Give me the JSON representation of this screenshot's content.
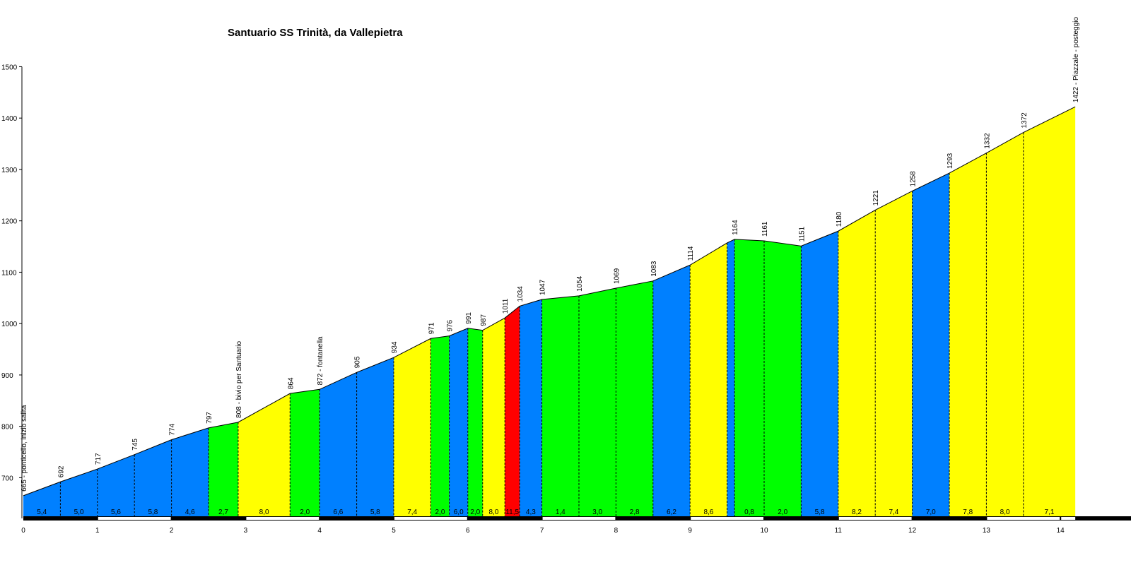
{
  "chart_data": {
    "type": "area",
    "title": "Santuario SS Trinità, da Vallepietra",
    "xlabel": "",
    "ylabel": "",
    "xlim": [
      0,
      15.2
    ],
    "ylim": [
      625,
      1500
    ],
    "y_ticks": [
      "700",
      "800",
      "900",
      "1000",
      "1100",
      "1200",
      "1300",
      "1400",
      "1500"
    ],
    "x_ticks": [
      "0",
      "1",
      "2",
      "3",
      "4",
      "5",
      "6",
      "7",
      "8",
      "9",
      "10",
      "11",
      "12",
      "13",
      "14"
    ],
    "colors": {
      "blue": "#0080ff",
      "green": "#00ff00",
      "yellow": "#ffff00",
      "red": "#ff0000"
    },
    "points": [
      {
        "x": 0,
        "y": 665,
        "label": "665 - ponticello, inizio salita"
      },
      {
        "x": 0.5,
        "y": 692,
        "label": "692"
      },
      {
        "x": 1,
        "y": 717,
        "label": "717"
      },
      {
        "x": 1.5,
        "y": 745,
        "label": "745"
      },
      {
        "x": 2,
        "y": 774,
        "label": "774"
      },
      {
        "x": 2.5,
        "y": 797,
        "label": "797"
      },
      {
        "x": 2.9,
        "y": 808,
        "label": "808 - bivio per Santuario"
      },
      {
        "x": 3.6,
        "y": 864,
        "label": "864"
      },
      {
        "x": 4,
        "y": 872,
        "label": "872 - fontanella"
      },
      {
        "x": 4.5,
        "y": 905,
        "label": "905"
      },
      {
        "x": 5,
        "y": 934,
        "label": "934"
      },
      {
        "x": 5.5,
        "y": 971,
        "label": "971"
      },
      {
        "x": 5.75,
        "y": 976,
        "label": "976"
      },
      {
        "x": 6,
        "y": 991,
        "label": "991"
      },
      {
        "x": 6.2,
        "y": 987,
        "label": "987"
      },
      {
        "x": 6.5,
        "y": 1011,
        "label": "1011"
      },
      {
        "x": 6.7,
        "y": 1034,
        "label": "1034"
      },
      {
        "x": 7,
        "y": 1047,
        "label": "1047"
      },
      {
        "x": 7.5,
        "y": 1054,
        "label": "1054"
      },
      {
        "x": 8,
        "y": 1069,
        "label": "1069"
      },
      {
        "x": 8.5,
        "y": 1083,
        "label": "1083"
      },
      {
        "x": 9,
        "y": 1114,
        "label": "1114"
      },
      {
        "x": 9.5,
        "y": 1157,
        "label": ""
      },
      {
        "x": 9.6,
        "y": 1164,
        "label": "1164"
      },
      {
        "x": 10,
        "y": 1161,
        "label": "1161"
      },
      {
        "x": 10.5,
        "y": 1151,
        "label": "1151"
      },
      {
        "x": 11,
        "y": 1180,
        "label": "1180"
      },
      {
        "x": 11.5,
        "y": 1221,
        "label": "1221"
      },
      {
        "x": 12,
        "y": 1258,
        "label": "1258"
      },
      {
        "x": 12.5,
        "y": 1293,
        "label": "1293"
      },
      {
        "x": 13,
        "y": 1332,
        "label": "1332"
      },
      {
        "x": 13.5,
        "y": 1372,
        "label": "1372"
      },
      {
        "x": 14.2,
        "y": 1422,
        "label": "1422 - Piazzale - posteggio"
      }
    ],
    "segments": [
      {
        "from": 0,
        "to": 0.5,
        "gradient": "5,4",
        "color": "blue"
      },
      {
        "from": 0.5,
        "to": 1,
        "gradient": "5,0",
        "color": "blue"
      },
      {
        "from": 1,
        "to": 1.5,
        "gradient": "5,6",
        "color": "blue"
      },
      {
        "from": 1.5,
        "to": 2,
        "gradient": "5,8",
        "color": "blue"
      },
      {
        "from": 2,
        "to": 2.5,
        "gradient": "4,6",
        "color": "blue"
      },
      {
        "from": 2.5,
        "to": 2.9,
        "gradient": "2,7",
        "color": "green"
      },
      {
        "from": 2.9,
        "to": 3.6,
        "gradient": "8,0",
        "color": "yellow"
      },
      {
        "from": 3.6,
        "to": 4,
        "gradient": "2,0",
        "color": "green"
      },
      {
        "from": 4,
        "to": 4.5,
        "gradient": "6,6",
        "color": "blue"
      },
      {
        "from": 4.5,
        "to": 5,
        "gradient": "5,8",
        "color": "blue"
      },
      {
        "from": 5,
        "to": 5.5,
        "gradient": "7,4",
        "color": "yellow"
      },
      {
        "from": 5.5,
        "to": 5.75,
        "gradient": "2,0",
        "color": "green"
      },
      {
        "from": 5.75,
        "to": 6,
        "gradient": "6,0",
        "color": "blue"
      },
      {
        "from": 6,
        "to": 6.2,
        "gradient": "2,0",
        "color": "green"
      },
      {
        "from": 6.2,
        "to": 6.5,
        "gradient": "8,0",
        "color": "yellow"
      },
      {
        "from": 6.5,
        "to": 6.7,
        "gradient": "11,5",
        "color": "red"
      },
      {
        "from": 6.7,
        "to": 7,
        "gradient": "4,3",
        "color": "blue"
      },
      {
        "from": 7,
        "to": 7.5,
        "gradient": "1,4",
        "color": "green"
      },
      {
        "from": 7.5,
        "to": 8,
        "gradient": "3,0",
        "color": "green"
      },
      {
        "from": 8,
        "to": 8.5,
        "gradient": "2,8",
        "color": "green"
      },
      {
        "from": 8.5,
        "to": 9,
        "gradient": "6,2",
        "color": "blue"
      },
      {
        "from": 9,
        "to": 9.5,
        "gradient": "8,6",
        "color": "yellow"
      },
      {
        "from": 9.5,
        "to": 9.6,
        "gradient": "",
        "color": "blue"
      },
      {
        "from": 9.6,
        "to": 10,
        "gradient": "0,8",
        "color": "green"
      },
      {
        "from": 10,
        "to": 10.5,
        "gradient": "2,0",
        "color": "green"
      },
      {
        "from": 10.5,
        "to": 11,
        "gradient": "5,8",
        "color": "blue"
      },
      {
        "from": 11,
        "to": 11.5,
        "gradient": "8,2",
        "color": "yellow"
      },
      {
        "from": 11.5,
        "to": 12,
        "gradient": "7,4",
        "color": "yellow"
      },
      {
        "from": 12,
        "to": 12.5,
        "gradient": "7,0",
        "color": "blue"
      },
      {
        "from": 12.5,
        "to": 13,
        "gradient": "7,8",
        "color": "yellow"
      },
      {
        "from": 13,
        "to": 13.5,
        "gradient": "8,0",
        "color": "yellow"
      },
      {
        "from": 13.5,
        "to": 14.2,
        "gradient": "7,1",
        "color": "yellow"
      }
    ]
  }
}
